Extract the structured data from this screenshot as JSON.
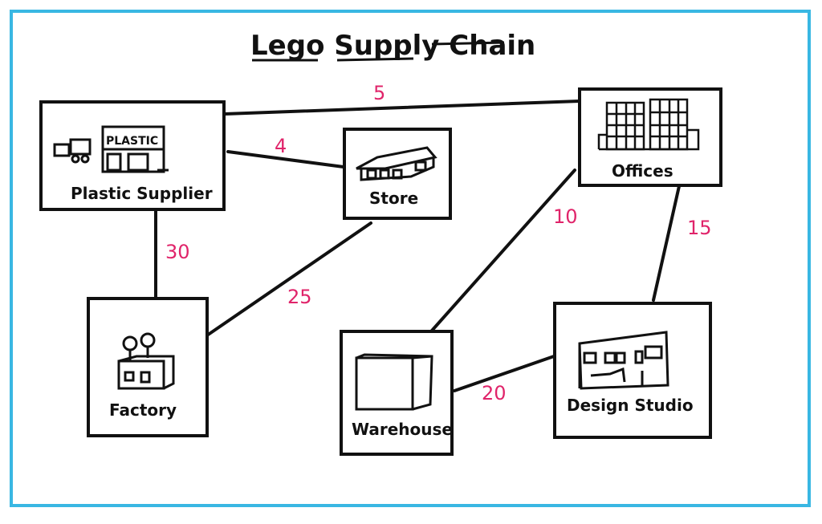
{
  "title": "Lego Supply Chain",
  "colors": {
    "frame": "#39b7e3",
    "stroke": "#111111",
    "weight": "#e0246a"
  },
  "nodes": [
    {
      "id": "plastic-supplier",
      "label": "Plastic Supplier",
      "icon": "truck-and-plastic-store-icon",
      "sign": "PLASTIC"
    },
    {
      "id": "store",
      "label": "Store",
      "icon": "store-building-icon"
    },
    {
      "id": "offices",
      "label": "Offices",
      "icon": "office-buildings-icon"
    },
    {
      "id": "factory",
      "label": "Factory",
      "icon": "factory-with-trees-icon"
    },
    {
      "id": "warehouse",
      "label": "Warehouse",
      "icon": "warehouse-box-icon"
    },
    {
      "id": "design-studio",
      "label": "Design Studio",
      "icon": "studio-building-icon"
    }
  ],
  "edges": [
    {
      "from": "plastic-supplier",
      "to": "offices",
      "weight": "5"
    },
    {
      "from": "plastic-supplier",
      "to": "store",
      "weight": "4"
    },
    {
      "from": "plastic-supplier",
      "to": "factory",
      "weight": "30"
    },
    {
      "from": "store",
      "to": "factory",
      "weight": "25"
    },
    {
      "from": "offices",
      "to": "warehouse",
      "weight": "10"
    },
    {
      "from": "offices",
      "to": "design-studio",
      "weight": "15"
    },
    {
      "from": "warehouse",
      "to": "design-studio",
      "weight": "20"
    }
  ]
}
